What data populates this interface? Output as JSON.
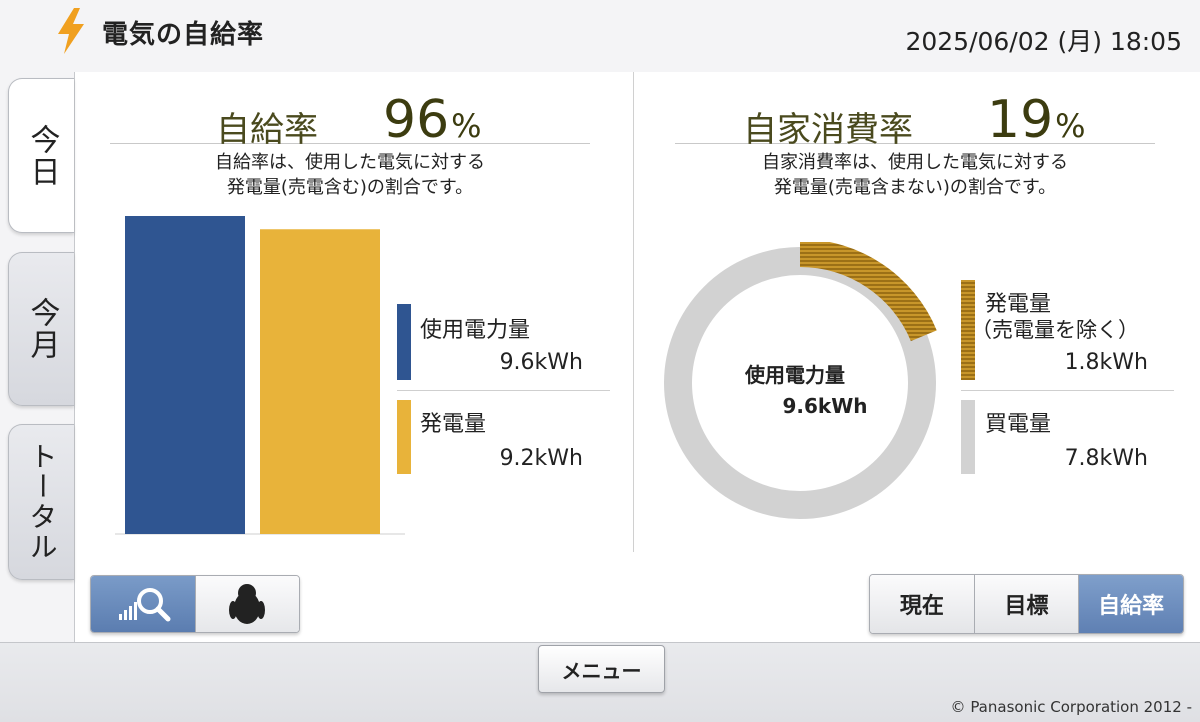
{
  "header": {
    "title": "電気の自給率",
    "datetime": "2025/06/02 (月) 18:05",
    "icon": "lightning-bolt-icon",
    "icon_color": "#f0a020"
  },
  "tabs": [
    {
      "label": "今日",
      "active": true
    },
    {
      "label": "今月",
      "active": false
    },
    {
      "label": "トータル",
      "active": false
    }
  ],
  "self_sufficiency": {
    "label": "自給率",
    "value": "96",
    "unit": "%",
    "desc_line1": "自給率は、使用した電気に対する",
    "desc_line2": "発電量(売電含む)の割合です。",
    "legend": [
      {
        "label": "使用電力量",
        "value": "9.6kWh",
        "color": "#2f5591"
      },
      {
        "label": "発電量",
        "value": "9.2kWh",
        "color": "#e8b33a"
      }
    ]
  },
  "self_consumption": {
    "label": "自家消費率",
    "value": "19",
    "unit": "%",
    "desc_line1": "自家消費率は、使用した電気に対する",
    "desc_line2": "発電量(売電含まない)の割合です。",
    "center_label": "使用電力量",
    "center_value": "9.6kWh",
    "legend": [
      {
        "label": "発電量",
        "sublabel": "（売電量を除く）",
        "value": "1.8kWh",
        "color": "#b8861e"
      },
      {
        "label": "買電量",
        "value": "7.8kWh",
        "color": "#d2d2d2"
      }
    ]
  },
  "chart_data": [
    {
      "type": "bar",
      "categories": [
        "使用電力量",
        "発電量"
      ],
      "values": [
        9.6,
        9.2
      ],
      "colors": [
        "#2f5591",
        "#e8b33a"
      ]
    },
    {
      "type": "pie",
      "categories": [
        "発電量（売電量を除く）",
        "買電量"
      ],
      "values": [
        1.8,
        7.8
      ],
      "colors": [
        "#b8861e",
        "#d2d2d2"
      ]
    }
  ],
  "view_toggle": [
    {
      "icon": "chart-zoom-icon",
      "active": true
    },
    {
      "icon": "penguin-icon",
      "active": false
    }
  ],
  "mode_buttons": [
    {
      "label": "現在",
      "active": false
    },
    {
      "label": "目標",
      "active": false
    },
    {
      "label": "自給率",
      "active": true
    }
  ],
  "footer": {
    "menu_label": "メニュー",
    "copyright": "© Panasonic Corporation 2012 -"
  }
}
